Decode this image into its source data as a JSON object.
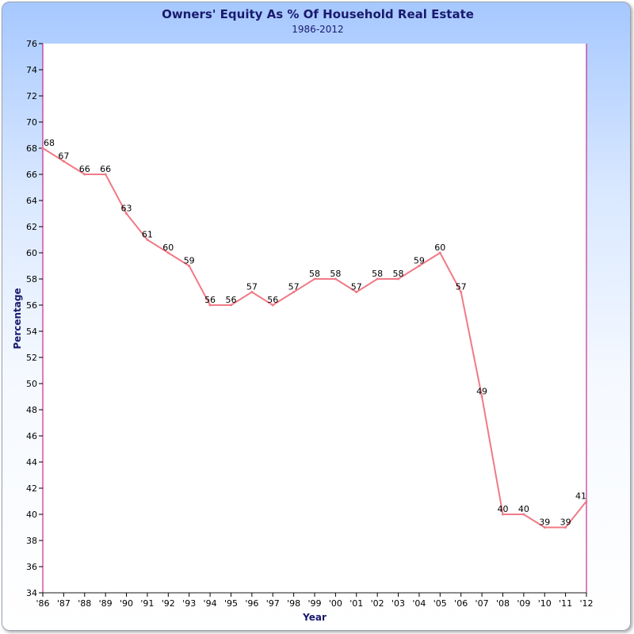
{
  "chart_data": {
    "type": "line",
    "title": "Owners' Equity As % Of Household Real Estate",
    "subtitle": "1986-2012",
    "xlabel": "Year",
    "ylabel": "Percentage",
    "ylim": [
      34,
      76
    ],
    "ytick_step": 2,
    "categories": [
      "'86",
      "'87",
      "'88",
      "'89",
      "'90",
      "'91",
      "'92",
      "'93",
      "'94",
      "'95",
      "'96",
      "'97",
      "'98",
      "'99",
      "'00",
      "'01",
      "'02",
      "'03",
      "'04",
      "'05",
      "'06",
      "'07",
      "'08",
      "'09",
      "'10",
      "'11",
      "'12"
    ],
    "series": [
      {
        "values": [
          68,
          67,
          66,
          66,
          63,
          61,
          60,
          59,
          56,
          56,
          57,
          56,
          57,
          58,
          58,
          57,
          58,
          58,
          59,
          60,
          57,
          49,
          40,
          40,
          39,
          39,
          41
        ],
        "color": "#f07a86"
      }
    ],
    "grid": false,
    "legend": "none"
  }
}
